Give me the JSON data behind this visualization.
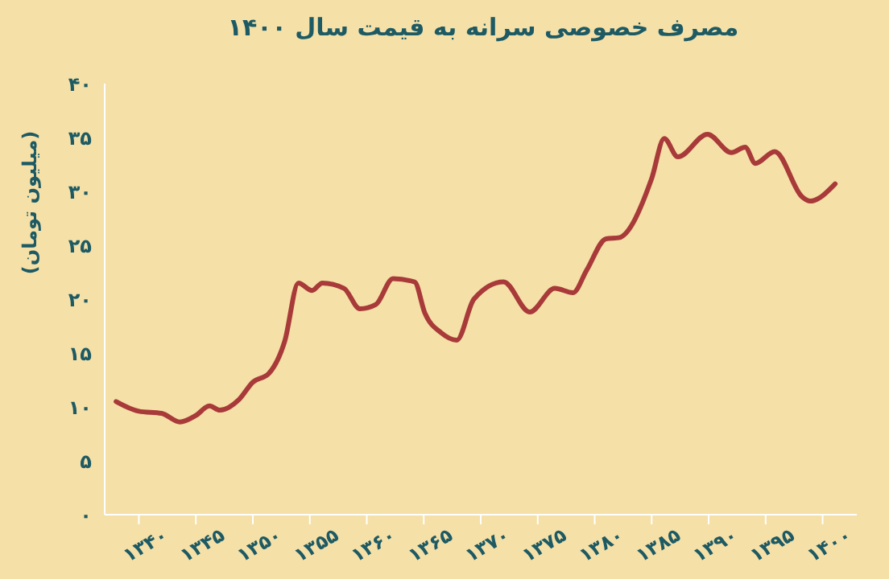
{
  "chart_data": {
    "type": "line",
    "title": "مصرف خصوصی سرانه به قیمت سال ۱۴۰۰",
    "ylabel": "(میلیون تومان)",
    "x": [
      1338,
      1340,
      1342,
      1343.6,
      1345,
      1346.2,
      1347.1,
      1348.8,
      1350,
      1351.4,
      1352.8,
      1354,
      1355.2,
      1356.1,
      1358,
      1359.4,
      1360.8,
      1362.3,
      1364.2,
      1365.1,
      1366.5,
      1367.9,
      1369.4,
      1372,
      1374.3,
      1376.5,
      1378.1,
      1379.3,
      1381,
      1382.1,
      1385,
      1386.1,
      1387.3,
      1389.9,
      1392,
      1393.2,
      1394.1,
      1395.8,
      1398.2,
      1398.9,
      1401.1
    ],
    "series": [
      {
        "color": "#a83a3a",
        "values": [
          10.5,
          9.6,
          9.4,
          8.6,
          9.2,
          10.1,
          9.7,
          10.7,
          12.3,
          13.1,
          16.1,
          21.5,
          20.8,
          21.5,
          21.0,
          19.1,
          19.5,
          21.9,
          21.6,
          18.7,
          16.9,
          16.2,
          20.0,
          21.6,
          18.8,
          21.0,
          20.6,
          22.7,
          25.6,
          25.7,
          31.2,
          34.9,
          33.2,
          35.3,
          33.6,
          34.1,
          32.6,
          33.7,
          29.5,
          29.1,
          30.7
        ]
      }
    ],
    "xlim": [
      1337,
      1403
    ],
    "xticks": [
      {
        "value": 1340,
        "label": "۱۳۴۰"
      },
      {
        "value": 1345,
        "label": "۱۳۴۵"
      },
      {
        "value": 1350,
        "label": "۱۳۵۰"
      },
      {
        "value": 1355,
        "label": "۱۳۵۵"
      },
      {
        "value": 1360,
        "label": "۱۳۶۰"
      },
      {
        "value": 1365,
        "label": "۱۳۶۵"
      },
      {
        "value": 1370,
        "label": "۱۳۷۰"
      },
      {
        "value": 1375,
        "label": "۱۳۷۵"
      },
      {
        "value": 1380,
        "label": "۱۳۸۰"
      },
      {
        "value": 1385,
        "label": "۱۳۸۵"
      },
      {
        "value": 1390,
        "label": "۱۳۹۰"
      },
      {
        "value": 1395,
        "label": "۱۳۹۵"
      },
      {
        "value": 1400,
        "label": "۱۴۰۰"
      }
    ],
    "ylim": [
      0,
      40
    ],
    "yticks": [
      {
        "value": 0,
        "label": "۰"
      },
      {
        "value": 5,
        "label": "۵"
      },
      {
        "value": 10,
        "label": "۱۰"
      },
      {
        "value": 15,
        "label": "۱۵"
      },
      {
        "value": 20,
        "label": "۲۰"
      },
      {
        "value": 25,
        "label": "۲۵"
      },
      {
        "value": 30,
        "label": "۳۰"
      },
      {
        "value": 35,
        "label": "۳۵"
      },
      {
        "value": 40,
        "label": "۴۰"
      }
    ],
    "grid": false,
    "legend": false,
    "marker": "none",
    "line_style": "solid"
  }
}
